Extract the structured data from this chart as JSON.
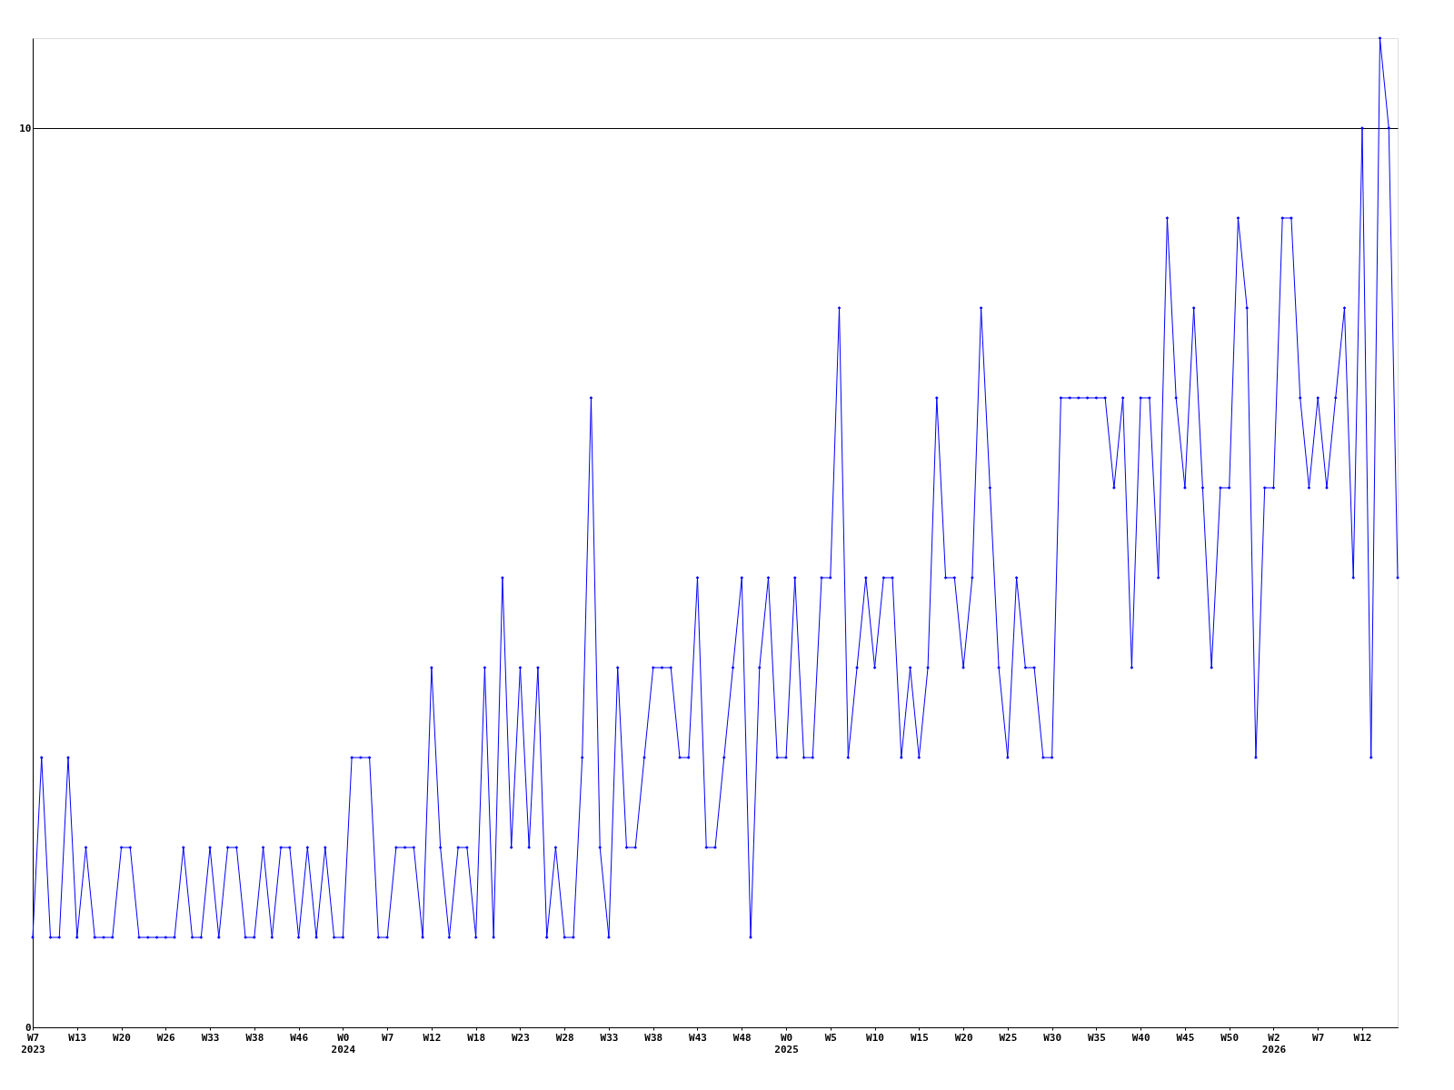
{
  "chart_data": {
    "type": "line",
    "categories": [
      "W7\n2023",
      null,
      null,
      null,
      null,
      "W13",
      null,
      null,
      null,
      null,
      "W20",
      null,
      null,
      null,
      null,
      "W26",
      null,
      null,
      null,
      null,
      "W33",
      null,
      null,
      null,
      null,
      "W38",
      null,
      null,
      null,
      null,
      "W46",
      null,
      null,
      null,
      null,
      "W0\n2024",
      null,
      null,
      null,
      null,
      "W7",
      null,
      null,
      null,
      null,
      "W12",
      null,
      null,
      null,
      null,
      "W18",
      null,
      null,
      null,
      null,
      "W23",
      null,
      null,
      null,
      null,
      "W28",
      null,
      null,
      null,
      null,
      "W33",
      null,
      null,
      null,
      null,
      "W38",
      null,
      null,
      null,
      null,
      "W43",
      null,
      null,
      null,
      null,
      "W48",
      null,
      null,
      null,
      null,
      "W0\n2025",
      null,
      null,
      null,
      null,
      "W5",
      null,
      null,
      null,
      null,
      "W10",
      null,
      null,
      null,
      null,
      "W15",
      null,
      null,
      null,
      null,
      "W20",
      null,
      null,
      null,
      null,
      "W25",
      null,
      null,
      null,
      null,
      "W30",
      null,
      null,
      null,
      null,
      "W35",
      null,
      null,
      null,
      null,
      "W40",
      null,
      null,
      null,
      null,
      "W45",
      null,
      null,
      null,
      null,
      "W50",
      null,
      null,
      null,
      null,
      "W2\n2026",
      null,
      null,
      null,
      null,
      "W7",
      null,
      null,
      null,
      null,
      "W12",
      null,
      null,
      null,
      null
    ],
    "series": [
      {
        "color": "#0000ff",
        "values": [
          1,
          3,
          1,
          1,
          3,
          1,
          2,
          1,
          1,
          1,
          2,
          2,
          1,
          1,
          1,
          1,
          1,
          2,
          1,
          1,
          2,
          1,
          2,
          2,
          1,
          1,
          2,
          1,
          2,
          2,
          1,
          2,
          1,
          2,
          1,
          1,
          3,
          3,
          3,
          1,
          1,
          2,
          2,
          2,
          1,
          4,
          2,
          1,
          2,
          2,
          1,
          4,
          1,
          5,
          2,
          4,
          2,
          4,
          1,
          2,
          1,
          1,
          3,
          7,
          2,
          1,
          4,
          2,
          2,
          3,
          4,
          4,
          4,
          3,
          3,
          5,
          2,
          2,
          3,
          4,
          5,
          1,
          4,
          5,
          3,
          3,
          5,
          3,
          3,
          5,
          5,
          8,
          3,
          4,
          5,
          4,
          5,
          5,
          3,
          4,
          3,
          4,
          7,
          5,
          5,
          4,
          5,
          8,
          6,
          4,
          3,
          5,
          4,
          4,
          3,
          3,
          7,
          7,
          7,
          7,
          7,
          7,
          6,
          7,
          4,
          7,
          7,
          5,
          9,
          7,
          6,
          8,
          6,
          4,
          6,
          6,
          9,
          8,
          3,
          6,
          6,
          9,
          9,
          7,
          6,
          7,
          6,
          7,
          8,
          5,
          10,
          3,
          11,
          10,
          5
        ]
      }
    ],
    "ylim": [
      0,
      11
    ],
    "yticks": [
      0,
      10
    ],
    "grid": "y",
    "marker": "diamond",
    "line_style": "solid"
  }
}
